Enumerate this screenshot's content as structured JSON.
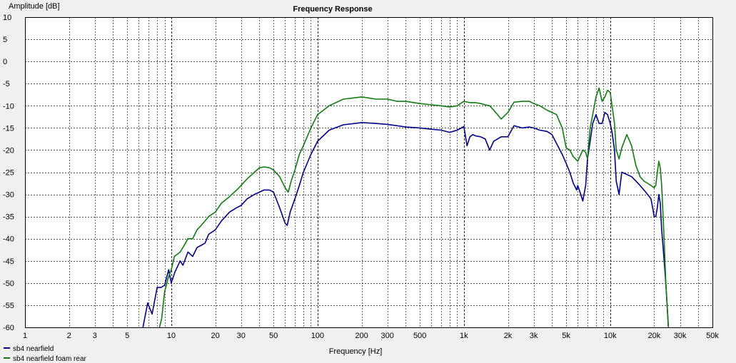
{
  "chart_data": {
    "type": "line",
    "title": "Frequency Response",
    "xlabel": "Frequency [Hz]",
    "ylabel": "Amplitude [dB]",
    "xscale": "log",
    "xlim": [
      1,
      50000
    ],
    "ylim": [
      -60,
      10
    ],
    "grid": true,
    "grid_style": "dotted",
    "legend_position": "bottom-left",
    "x_ticks": [
      {
        "value": 1,
        "label": "1"
      },
      {
        "value": 2,
        "label": "2"
      },
      {
        "value": 3,
        "label": "3"
      },
      {
        "value": 5,
        "label": "5"
      },
      {
        "value": 10,
        "label": "10"
      },
      {
        "value": 20,
        "label": "20"
      },
      {
        "value": 30,
        "label": "30"
      },
      {
        "value": 50,
        "label": "50"
      },
      {
        "value": 100,
        "label": "100"
      },
      {
        "value": 200,
        "label": "200"
      },
      {
        "value": 300,
        "label": "300"
      },
      {
        "value": 500,
        "label": "500"
      },
      {
        "value": 1000,
        "label": "1k"
      },
      {
        "value": 2000,
        "label": "2k"
      },
      {
        "value": 3000,
        "label": "3k"
      },
      {
        "value": 5000,
        "label": "5k"
      },
      {
        "value": 10000,
        "label": "10k"
      },
      {
        "value": 20000,
        "label": "20k"
      },
      {
        "value": 30000,
        "label": "30k"
      },
      {
        "value": 50000,
        "label": "50k"
      }
    ],
    "y_ticks": [
      {
        "value": 10,
        "label": "10"
      },
      {
        "value": 5,
        "label": "5"
      },
      {
        "value": 0,
        "label": "0"
      },
      {
        "value": -5,
        "label": "-5"
      },
      {
        "value": -10,
        "label": "-10"
      },
      {
        "value": -15,
        "label": "-15"
      },
      {
        "value": -20,
        "label": "-20"
      },
      {
        "value": -25,
        "label": "-25"
      },
      {
        "value": -30,
        "label": "-30"
      },
      {
        "value": -35,
        "label": "-35"
      },
      {
        "value": -40,
        "label": "-40"
      },
      {
        "value": -45,
        "label": "-45"
      },
      {
        "value": -50,
        "label": "-50"
      },
      {
        "value": -55,
        "label": "-55"
      },
      {
        "value": -60,
        "label": "-60"
      }
    ],
    "series": [
      {
        "name": "sb4 nearfield",
        "color": "#00008b",
        "x": [
          6.4,
          6.9,
          7.4,
          8.0,
          8.5,
          9.0,
          9.6,
          10,
          10.6,
          11.5,
          12,
          13,
          14,
          15,
          16,
          17,
          18,
          20,
          22,
          25,
          28,
          30,
          33,
          37,
          40,
          43,
          47,
          50,
          55,
          60,
          62,
          65,
          70,
          75,
          80,
          90,
          100,
          120,
          150,
          200,
          250,
          300,
          350,
          400,
          500,
          600,
          700,
          800,
          900,
          1000,
          1050,
          1100,
          1150,
          1200,
          1300,
          1400,
          1500,
          1600,
          1800,
          2000,
          2200,
          2500,
          2800,
          3000,
          3300,
          3700,
          4000,
          4300,
          4700,
          5000,
          5300,
          5600,
          5900,
          6000,
          6300,
          6500,
          6800,
          7000,
          7300,
          7600,
          8000,
          8400,
          8800,
          9200,
          9600,
          10000,
          10300,
          10700,
          11000,
          11500,
          12000,
          13000,
          14000,
          15000,
          16000,
          17000,
          18000,
          19000,
          19500,
          20000,
          20500,
          21000,
          21500,
          22000,
          22500,
          23000,
          23500,
          24000,
          24500,
          25000
        ],
        "y": [
          -60,
          -54.5,
          -57,
          -51,
          -51,
          -50.5,
          -47,
          -50,
          -47.5,
          -45,
          -46,
          -43,
          -44,
          -42,
          -41.5,
          -41,
          -39,
          -38,
          -36,
          -34,
          -33,
          -32.5,
          -31,
          -30,
          -29.5,
          -29,
          -29,
          -29.5,
          -33,
          -36.5,
          -37,
          -34,
          -31,
          -28,
          -25,
          -21,
          -18,
          -15.5,
          -14.3,
          -13.8,
          -14,
          -14.2,
          -14.5,
          -14.8,
          -15,
          -15.3,
          -15.5,
          -16,
          -15.5,
          -14.7,
          -19,
          -17,
          -16.5,
          -16.8,
          -17,
          -17.5,
          -20,
          -18,
          -17,
          -17,
          -14.5,
          -15,
          -14.8,
          -15,
          -15.5,
          -15.8,
          -16.5,
          -18.5,
          -21,
          -23,
          -25,
          -27.5,
          -29,
          -28,
          -30,
          -31.5,
          -28,
          -22,
          -18,
          -14,
          -12,
          -14,
          -14,
          -11.5,
          -12,
          -14,
          -16,
          -20,
          -27,
          -30,
          -25,
          -25.5,
          -26,
          -27,
          -28,
          -29,
          -30,
          -31,
          -33,
          -35,
          -35,
          -33,
          -30,
          -32,
          -38,
          -42,
          -46,
          -50,
          -55,
          -60
        ]
      },
      {
        "name": "sb4 nearfield foam rear",
        "color": "#127a12",
        "x": [
          8.3,
          8.6,
          9.0,
          9.5,
          10,
          10.5,
          11,
          11.5,
          12,
          13,
          14,
          15,
          16,
          17,
          18,
          20,
          22,
          25,
          28,
          30,
          33,
          37,
          40,
          43,
          47,
          50,
          55,
          60,
          63,
          66,
          70,
          75,
          80,
          90,
          100,
          120,
          150,
          200,
          250,
          300,
          350,
          400,
          500,
          600,
          700,
          800,
          900,
          1000,
          1100,
          1200,
          1300,
          1400,
          1500,
          1600,
          1800,
          2000,
          2200,
          2500,
          2800,
          3000,
          3300,
          3700,
          4000,
          4300,
          4700,
          5000,
          5300,
          5600,
          6000,
          6300,
          6500,
          6800,
          7000,
          7300,
          7600,
          8000,
          8400,
          8800,
          9200,
          9600,
          10000,
          10300,
          10700,
          11000,
          11500,
          12000,
          13000,
          14000,
          15000,
          16000,
          17000,
          18000,
          19000,
          20000,
          20500,
          21000,
          21500,
          22000,
          22500,
          23000,
          23500,
          24000,
          24500,
          25000
        ],
        "y": [
          -60,
          -58,
          -52,
          -49,
          -47,
          -44,
          -43.5,
          -43,
          -42,
          -40,
          -40,
          -38,
          -37,
          -36,
          -35,
          -34,
          -32,
          -30.5,
          -29,
          -28,
          -26.5,
          -25,
          -24,
          -23.8,
          -24,
          -24.5,
          -26,
          -28.5,
          -29.5,
          -27,
          -24.5,
          -21,
          -19,
          -15,
          -12,
          -10,
          -8.5,
          -8,
          -8.5,
          -8.5,
          -9,
          -9,
          -9.5,
          -9.8,
          -10,
          -10.3,
          -10,
          -9,
          -9.3,
          -9.3,
          -9.5,
          -9.8,
          -10,
          -11,
          -13,
          -11.5,
          -9.2,
          -9,
          -9,
          -9.5,
          -10,
          -11,
          -11.5,
          -12,
          -15,
          -19.5,
          -20,
          -21.5,
          -22.5,
          -21,
          -20,
          -20.5,
          -22,
          -15,
          -12,
          -8,
          -6,
          -9,
          -8,
          -6.5,
          -7,
          -10,
          -14,
          -20,
          -22,
          -19.5,
          -16.5,
          -19,
          -23.5,
          -26,
          -27,
          -27.5,
          -28,
          -28.5,
          -28,
          -25,
          -22.5,
          -24,
          -28,
          -35,
          -42,
          -50,
          -55,
          -60
        ]
      }
    ]
  }
}
